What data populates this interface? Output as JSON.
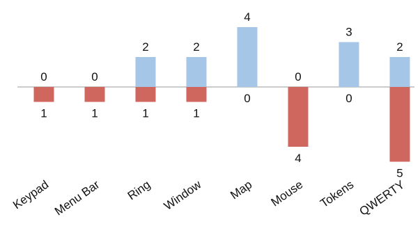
{
  "chart_data": {
    "type": "bar",
    "categories": [
      "Keypad",
      "Menu Bar",
      "Ring",
      "Window",
      "Map",
      "Mouse",
      "Tokens",
      "QWERTY"
    ],
    "series": [
      {
        "values": [
          0,
          0,
          2,
          2,
          4,
          0,
          3,
          2
        ],
        "color": "#a6c6e8",
        "direction": "up"
      },
      {
        "values": [
          1,
          1,
          1,
          1,
          0,
          4,
          0,
          5
        ],
        "color": "#d0675f",
        "direction": "down"
      }
    ],
    "title": "",
    "xlabel": "",
    "ylabel": "",
    "grid": false,
    "axis_color": "#bbbbbb"
  }
}
